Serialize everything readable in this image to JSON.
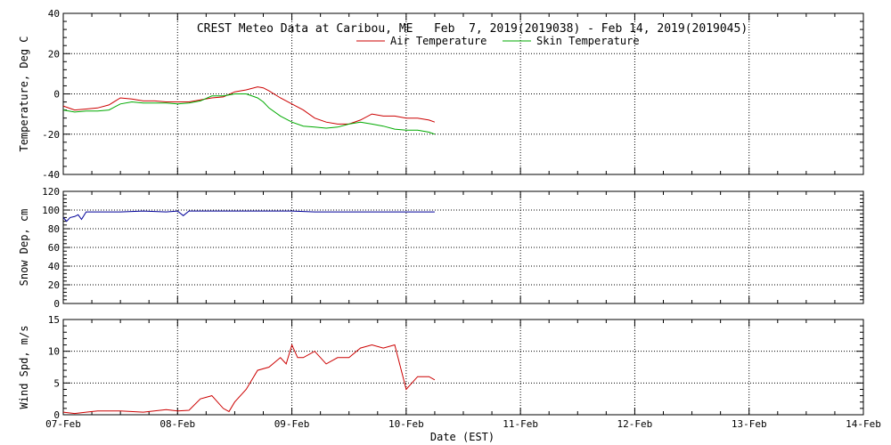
{
  "title": "CREST Meteo Data at Caribou, ME   Feb  7, 2019(2019038) - Feb 14, 2019(2019045)",
  "xlabel": "Date (EST)",
  "x_ticks": [
    "07-Feb",
    "08-Feb",
    "09-Feb",
    "10-Feb",
    "11-Feb",
    "12-Feb",
    "13-Feb",
    "14-Feb"
  ],
  "colors": {
    "air": "#cc0000",
    "skin": "#00aa00",
    "snow": "#000099",
    "wind": "#cc0000",
    "axis": "#000000"
  },
  "chart_data": [
    {
      "type": "line",
      "ylabel": "Temperature, Deg C",
      "xlim": [
        0,
        7
      ],
      "ylim": [
        -40,
        40
      ],
      "y_ticks": [
        -40,
        -20,
        0,
        20,
        40
      ],
      "grid": true,
      "legend": "top-center",
      "series": [
        {
          "name": "Air Temperature",
          "x": [
            0,
            0.1,
            0.2,
            0.3,
            0.4,
            0.5,
            0.6,
            0.7,
            0.8,
            0.9,
            1.0,
            1.1,
            1.2,
            1.3,
            1.4,
            1.5,
            1.6,
            1.7,
            1.75,
            1.8,
            1.9,
            2.0,
            2.1,
            2.2,
            2.3,
            2.4,
            2.5,
            2.6,
            2.7,
            2.8,
            2.9,
            3.0,
            3.1,
            3.2,
            3.25
          ],
          "y": [
            -6,
            -8,
            -7.5,
            -7,
            -5.5,
            -2,
            -2.5,
            -3.5,
            -3.5,
            -4,
            -4,
            -4,
            -3,
            -2,
            -1.5,
            1,
            2,
            3.5,
            3,
            1.5,
            -2,
            -5,
            -8,
            -12,
            -14,
            -15,
            -15,
            -13,
            -10,
            -11,
            -11,
            -12,
            -12,
            -13,
            -14
          ]
        },
        {
          "name": "Skin Temperature",
          "x": [
            0,
            0.1,
            0.2,
            0.3,
            0.4,
            0.5,
            0.6,
            0.7,
            0.8,
            0.9,
            1.0,
            1.1,
            1.2,
            1.3,
            1.4,
            1.5,
            1.6,
            1.7,
            1.75,
            1.8,
            1.9,
            2.0,
            2.1,
            2.2,
            2.3,
            2.4,
            2.5,
            2.6,
            2.7,
            2.8,
            2.9,
            3.0,
            3.1,
            3.2,
            3.25
          ],
          "y": [
            -8,
            -9,
            -8.5,
            -8.5,
            -8,
            -5,
            -4,
            -4.5,
            -4.5,
            -4.5,
            -5,
            -4.5,
            -3.5,
            -1,
            -1,
            0,
            0,
            -2,
            -4,
            -7,
            -11,
            -14,
            -16,
            -16.5,
            -17,
            -16.5,
            -15,
            -14,
            -15,
            -16,
            -17.5,
            -18,
            -18,
            -19,
            -20
          ]
        }
      ]
    },
    {
      "type": "line",
      "ylabel": "Snow Dep, cm",
      "xlim": [
        0,
        7
      ],
      "ylim": [
        0,
        120
      ],
      "y_ticks": [
        0,
        20,
        40,
        60,
        80,
        100,
        120
      ],
      "grid": true,
      "series": [
        {
          "name": "",
          "x": [
            0,
            0.03,
            0.06,
            0.1,
            0.13,
            0.16,
            0.2,
            0.5,
            0.7,
            0.9,
            1.0,
            1.05,
            1.1,
            1.5,
            2.0,
            2.2,
            2.5,
            3.0,
            3.25
          ],
          "y": [
            92,
            88,
            92,
            93,
            95,
            90,
            98,
            98,
            99,
            98,
            99,
            94,
            99,
            99,
            99,
            98,
            98,
            98,
            98
          ]
        }
      ]
    },
    {
      "type": "line",
      "ylabel": "Wind Spd, m/s",
      "xlim": [
        0,
        7
      ],
      "ylim": [
        0,
        15
      ],
      "y_ticks": [
        0,
        5,
        10,
        15
      ],
      "grid": true,
      "series": [
        {
          "name": "",
          "x": [
            0,
            0.1,
            0.2,
            0.3,
            0.5,
            0.7,
            0.9,
            1.0,
            1.1,
            1.2,
            1.3,
            1.4,
            1.45,
            1.5,
            1.6,
            1.7,
            1.8,
            1.9,
            1.95,
            2.0,
            2.05,
            2.1,
            2.2,
            2.3,
            2.4,
            2.5,
            2.6,
            2.7,
            2.8,
            2.9,
            3.0,
            3.05,
            3.1,
            3.2,
            3.25
          ],
          "y": [
            0.4,
            0.2,
            0.4,
            0.6,
            0.6,
            0.4,
            0.8,
            0.6,
            0.7,
            2.5,
            3,
            1,
            0.5,
            2,
            4,
            7,
            7.5,
            9,
            8,
            11,
            9,
            9,
            10,
            8,
            9,
            9,
            10.5,
            11,
            10.5,
            11,
            4,
            5,
            6,
            6,
            5.5
          ]
        }
      ]
    }
  ]
}
